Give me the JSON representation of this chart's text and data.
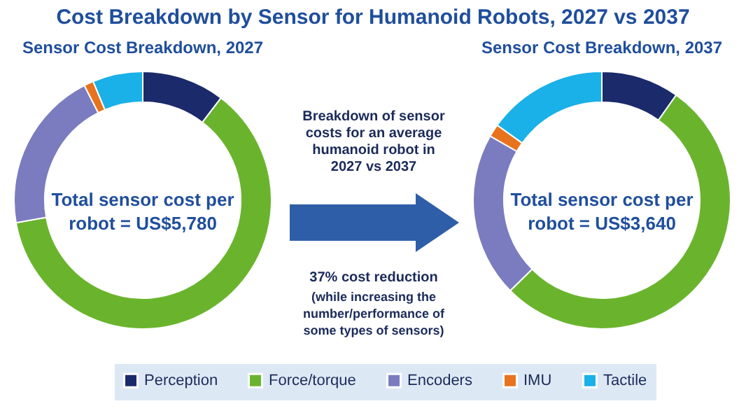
{
  "chart_data": [
    {
      "type": "other",
      "title": "Cost Breakdown by Sensor for Humanoid Robots, 2027 vs 2037",
      "annotations": [
        "Breakdown of sensor costs for an average humanoid robot in 2027 vs 2037",
        "37% cost reduction",
        "(while increasing the number/performance of some types of sensors)"
      ]
    },
    {
      "type": "donut",
      "title": "Sensor Cost Breakdown, 2027",
      "categories": [
        "Perception",
        "Force/torque",
        "Encoders",
        "IMU",
        "Tactile"
      ],
      "values": [
        10.4,
        61.8,
        20.3,
        1.2,
        6.3
      ],
      "colors": [
        "#1b2a6b",
        "#6ab42d",
        "#7b7bbf",
        "#e8731e",
        "#1ab0e8"
      ],
      "annotations": [
        "Total sensor cost per robot = US$5,780"
      ],
      "legend": "bottom"
    },
    {
      "type": "donut",
      "title": "Sensor Cost Breakdown, 2037",
      "categories": [
        null,
        null,
        null,
        null,
        null
      ],
      "values": [
        9.8,
        52.8,
        20.7,
        1.6,
        15.1
      ],
      "colors": [
        "#1b2a6b",
        "#6ab42d",
        "#7b7bbf",
        "#e8731e",
        "#1ab0e8"
      ],
      "annotations": [
        "Total sensor cost per robot = US$3,640"
      ]
    }
  ]
}
